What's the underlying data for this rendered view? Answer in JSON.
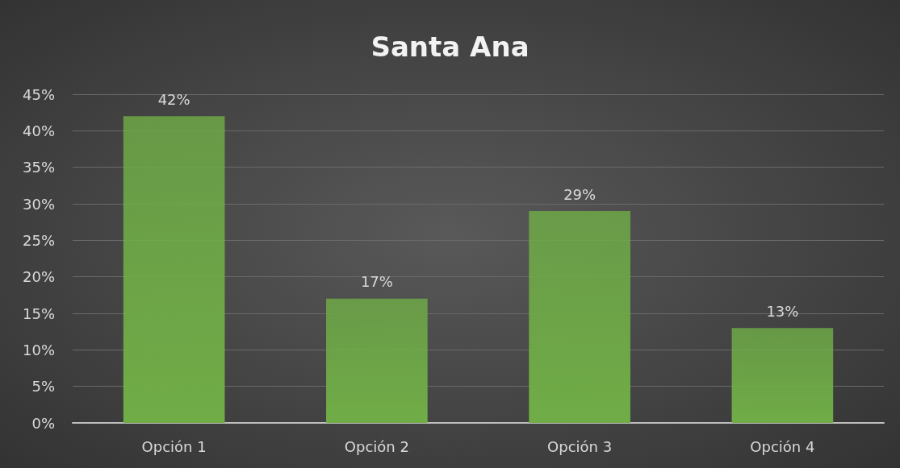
{
  "chart_data": {
    "type": "bar",
    "title": "Santa Ana",
    "categories": [
      "Opción 1",
      "Opción 2",
      "Opción 3",
      "Opción 4"
    ],
    "values": [
      42,
      17,
      29,
      13
    ],
    "value_labels": [
      "42%",
      "17%",
      "29%",
      "13%"
    ],
    "color": "#70ad47",
    "ylim": [
      0,
      45
    ],
    "yticks": [
      {
        "value": 0,
        "label": "0%"
      },
      {
        "value": 5,
        "label": "5%"
      },
      {
        "value": 10,
        "label": "10%"
      },
      {
        "value": 15,
        "label": "15%"
      },
      {
        "value": 20,
        "label": "20%"
      },
      {
        "value": 25,
        "label": "25%"
      },
      {
        "value": 30,
        "label": "30%"
      },
      {
        "value": 35,
        "label": "35%"
      },
      {
        "value": 40,
        "label": "40%"
      },
      {
        "value": 45,
        "label": "45%"
      }
    ],
    "grid": "y"
  }
}
